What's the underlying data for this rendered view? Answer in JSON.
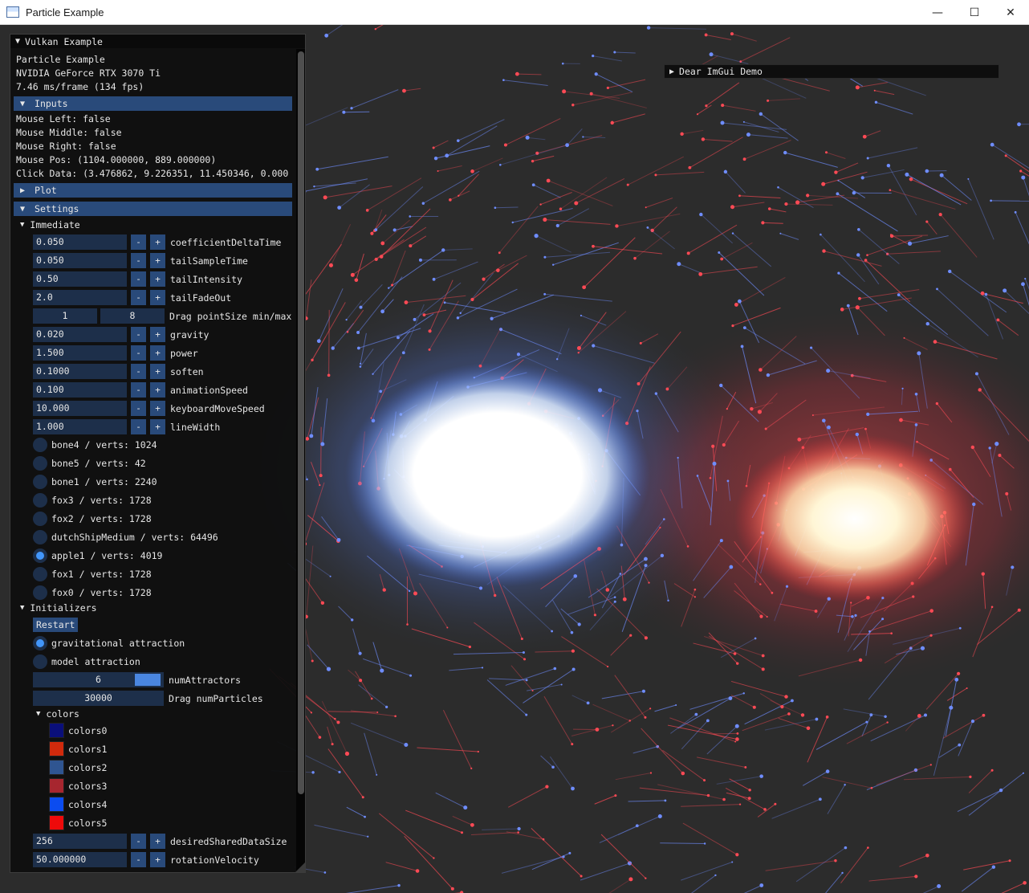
{
  "window": {
    "title": "Particle Example",
    "minimize": "—",
    "maximize": "☐",
    "close": "✕"
  },
  "panel": {
    "title": "Vulkan Example",
    "info": [
      "Particle Example",
      "NVIDIA GeForce RTX 3070 Ti",
      "7.46 ms/frame (134 fps)"
    ],
    "inputs_header": "Inputs",
    "inputs": [
      "Mouse Left: false",
      "Mouse Middle: false",
      "Mouse Right: false",
      "Mouse Pos: (1104.000000, 889.000000)",
      "Click Data: (3.476862, 9.226351, 11.450346, 0.0000"
    ],
    "plot_header": "Plot",
    "settings_header": "Settings",
    "immediate_label": "Immediate",
    "params": [
      {
        "value": "0.050",
        "label": "coefficientDeltaTime"
      },
      {
        "value": "0.050",
        "label": "tailSampleTime"
      },
      {
        "value": "0.50",
        "label": "tailIntensity"
      },
      {
        "value": "2.0",
        "label": "tailFadeOut"
      }
    ],
    "pointsize": {
      "min": "1",
      "max": "8",
      "label": "Drag pointSize min/max"
    },
    "params2": [
      {
        "value": "0.020",
        "label": "gravity"
      },
      {
        "value": "1.500",
        "label": "power"
      },
      {
        "value": "0.1000",
        "label": "soften"
      },
      {
        "value": "0.100",
        "label": "animationSpeed"
      },
      {
        "value": "10.000",
        "label": "keyboardMoveSpeed"
      },
      {
        "value": "1.000",
        "label": "lineWidth"
      }
    ],
    "models": [
      {
        "label": "bone4 / verts: 1024",
        "selected": false
      },
      {
        "label": "bone5 / verts: 42",
        "selected": false
      },
      {
        "label": "bone1 / verts: 2240",
        "selected": false
      },
      {
        "label": "fox3 / verts: 1728",
        "selected": false
      },
      {
        "label": "fox2 / verts: 1728",
        "selected": false
      },
      {
        "label": "dutchShipMedium / verts: 64496",
        "selected": false
      },
      {
        "label": "apple1 / verts: 4019",
        "selected": true
      },
      {
        "label": "fox1 / verts: 1728",
        "selected": false
      },
      {
        "label": "fox0 / verts: 1728",
        "selected": false
      }
    ],
    "initializers_label": "Initializers",
    "restart_label": "Restart",
    "init_modes": [
      {
        "label": "gravitational attraction",
        "selected": true
      },
      {
        "label": "model attraction",
        "selected": false
      }
    ],
    "num_attractors": {
      "value": "6",
      "label": "numAttractors",
      "fraction": 0.2
    },
    "num_particles": {
      "value": "30000",
      "label": "Drag numParticles"
    },
    "colors_label": "colors",
    "colors": [
      {
        "label": "colors0",
        "color": "#0a0f7a"
      },
      {
        "label": "colors1",
        "color": "#d12a0c"
      },
      {
        "label": "colors2",
        "color": "#2f5591"
      },
      {
        "label": "colors3",
        "color": "#a7262f"
      },
      {
        "label": "colors4",
        "color": "#0b4cf0"
      },
      {
        "label": "colors5",
        "color": "#ee0a0a"
      }
    ],
    "params3": [
      {
        "value": "256",
        "label": "desiredSharedDataSize"
      },
      {
        "value": "50.000000",
        "label": "rotationVelocity"
      }
    ],
    "minus": "-",
    "plus": "+"
  },
  "demo": {
    "title": "Dear ImGui Demo"
  },
  "colors": {
    "accent": "#294a7a",
    "frame": "#1d2f4a",
    "check": "#4296fa"
  }
}
